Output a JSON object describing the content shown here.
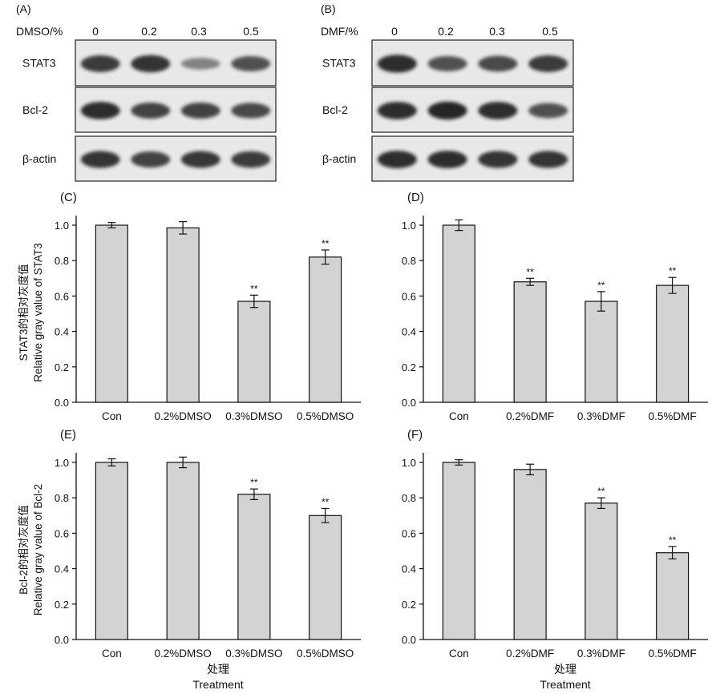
{
  "blots": {
    "left": {
      "panel_label": "(A)",
      "treatment_header": "DMSO/%",
      "lanes": [
        "0",
        "0.2",
        "0.3",
        "0.5"
      ],
      "rows": [
        {
          "label": "STAT3",
          "band_strength": [
            0.85,
            0.9,
            0.35,
            0.7
          ]
        },
        {
          "label": "Bcl-2",
          "band_strength": [
            0.95,
            0.8,
            0.8,
            0.75
          ]
        },
        {
          "label": "β-actin",
          "band_strength": [
            0.9,
            0.8,
            0.88,
            0.85
          ]
        }
      ]
    },
    "right": {
      "panel_label": "(B)",
      "treatment_header": "DMF/%",
      "lanes": [
        "0",
        "0.2",
        "0.3",
        "0.5"
      ],
      "rows": [
        {
          "label": "STAT3",
          "band_strength": [
            0.95,
            0.7,
            0.75,
            0.85
          ]
        },
        {
          "label": "Bcl-2",
          "band_strength": [
            0.95,
            1.0,
            0.95,
            0.7
          ]
        },
        {
          "label": "β-actin",
          "band_strength": [
            0.95,
            0.95,
            0.9,
            0.9
          ]
        }
      ]
    }
  },
  "row_axis_titles": [
    {
      "cn": "STAT3的相对灰度值",
      "en": "Relative gray value of STAT3"
    },
    {
      "cn": "Bcl-2的相对灰度值",
      "en": "Relative gray value of Bcl-2"
    }
  ],
  "x_axis_title": {
    "cn": "处理",
    "en": "Treatment"
  },
  "colors": {
    "bar_fill": "#d3d3d3",
    "bar_stroke": "#111111",
    "blot_bg": "#e8e8e8",
    "band": "#1a1a1a"
  },
  "chart_data": [
    {
      "type": "bar",
      "panel_label": "(C)",
      "categories": [
        "Con",
        "0.2%DMSO",
        "0.3%DMSO",
        "0.5%DMSO"
      ],
      "values": [
        1.0,
        0.985,
        0.57,
        0.82
      ],
      "errors": [
        0.015,
        0.035,
        0.035,
        0.04
      ],
      "annotations": [
        "",
        "",
        "**",
        "**"
      ],
      "ylim": [
        0,
        1.0
      ],
      "yticks": [
        "0.0",
        "0.2",
        "0.4",
        "0.6",
        "0.8",
        "1.0"
      ]
    },
    {
      "type": "bar",
      "panel_label": "(D)",
      "categories": [
        "Con",
        "0.2%DMF",
        "0.3%DMF",
        "0.5%DMF"
      ],
      "values": [
        1.0,
        0.68,
        0.57,
        0.66
      ],
      "errors": [
        0.03,
        0.02,
        0.055,
        0.045
      ],
      "annotations": [
        "",
        "**",
        "**",
        "**"
      ],
      "ylim": [
        0,
        1.0
      ],
      "yticks": [
        "0.0",
        "0.2",
        "0.4",
        "0.6",
        "0.8",
        "1.0"
      ]
    },
    {
      "type": "bar",
      "panel_label": "(E)",
      "categories": [
        "Con",
        "0.2%DMSO",
        "0.3%DMSO",
        "0.5%DMSO"
      ],
      "values": [
        1.0,
        1.0,
        0.82,
        0.7
      ],
      "errors": [
        0.02,
        0.03,
        0.03,
        0.04
      ],
      "annotations": [
        "",
        "",
        "**",
        "**"
      ],
      "ylim": [
        0,
        1.0
      ],
      "yticks": [
        "0.0",
        "0.2",
        "0.4",
        "0.6",
        "0.8",
        "1.0"
      ]
    },
    {
      "type": "bar",
      "panel_label": "(F)",
      "categories": [
        "Con",
        "0.2%DMF",
        "0.3%DMF",
        "0.5%DMF"
      ],
      "values": [
        1.0,
        0.96,
        0.77,
        0.49
      ],
      "errors": [
        0.015,
        0.03,
        0.03,
        0.035
      ],
      "annotations": [
        "",
        "",
        "**",
        "**"
      ],
      "ylim": [
        0,
        1.0
      ],
      "yticks": [
        "0.0",
        "0.2",
        "0.4",
        "0.6",
        "0.8",
        "1.0"
      ]
    }
  ]
}
